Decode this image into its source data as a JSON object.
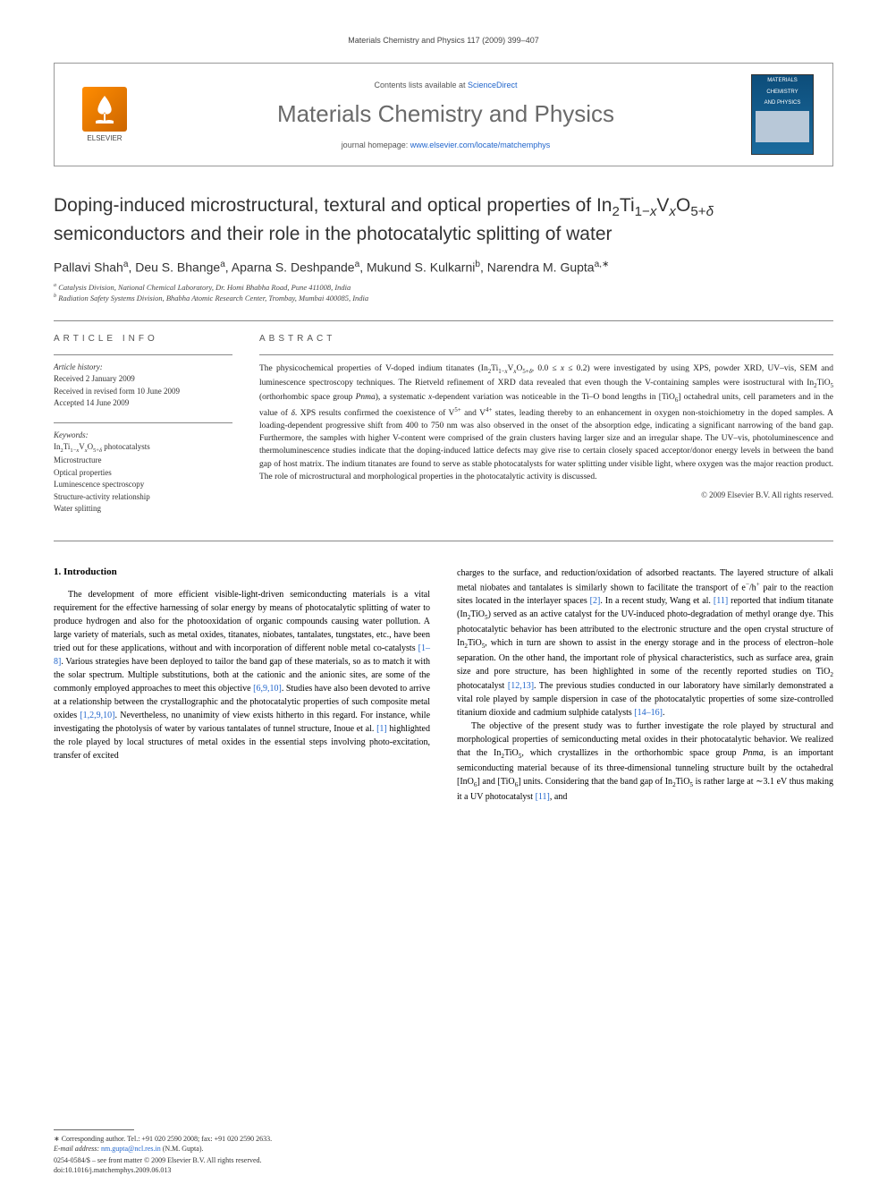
{
  "running_head": "Materials Chemistry and Physics 117 (2009) 399–407",
  "masthead": {
    "contents_prefix": "Contents lists available at ",
    "contents_link": "ScienceDirect",
    "journal": "Materials Chemistry and Physics",
    "homepage_prefix": "journal homepage: ",
    "homepage_url": "www.elsevier.com/locate/matchemphys",
    "publisher_name": "ELSEVIER",
    "cover_line1": "MATERIALS",
    "cover_line2": "CHEMISTRY",
    "cover_line3": "AND PHYSICS"
  },
  "title_html": "Doping-induced microstructural, textural and optical properties of In<sub>2</sub>Ti<sub>1−<i>x</i></sub>V<sub><i>x</i></sub>O<sub>5+<i>δ</i></sub> semiconductors and their role in the photocatalytic splitting of water",
  "authors_html": "Pallavi Shah<sup>a</sup>, Deu S. Bhange<sup>a</sup>, Aparna S. Deshpande<sup>a</sup>, Mukund S. Kulkarni<sup>b</sup>, Narendra M. Gupta<sup>a,∗</sup>",
  "affiliations": {
    "a": "Catalysis Division, National Chemical Laboratory, Dr. Homi Bhabha Road, Pune 411008, India",
    "b": "Radiation Safety Systems Division, Bhabha Atomic Research Center, Trombay, Mumbai 400085, India"
  },
  "article_info": {
    "head": "article info",
    "history_head": "Article history:",
    "history": [
      "Received 2 January 2009",
      "Received in revised form 10 June 2009",
      "Accepted 14 June 2009"
    ],
    "keywords_head": "Keywords:",
    "keywords_html": [
      "In<sub>2</sub>Ti<sub>1−<i>x</i></sub>V<sub><i>x</i></sub>O<sub>5+<i>δ</i></sub> photocatalysts",
      "Microstructure",
      "Optical properties",
      "Luminescence spectroscopy",
      "Structure-activity relationship",
      "Water splitting"
    ]
  },
  "abstract": {
    "head": "abstract",
    "text_html": "The physicochemical properties of V-doped indium titanates (In<sub>2</sub>Ti<sub>1−<i>x</i></sub>V<sub><i>x</i></sub>O<sub>5+<i>δ</i></sub>, 0.0 ≤ <i>x</i> ≤ 0.2) were investigated by using XPS, powder XRD, UV–vis, SEM and luminescence spectroscopy techniques. The Rietveld refinement of XRD data revealed that even though the V-containing samples were isostructural with In<sub>2</sub>TiO<sub>5</sub> (orthorhombic space group <i>Pnma</i>), a systematic <i>x</i>-dependent variation was noticeable in the Ti–O bond lengths in [TiO<sub>6</sub>] octahedral units, cell parameters and in the value of <i>δ</i>. XPS results confirmed the coexistence of V<sup>5+</sup> and V<sup>4+</sup> states, leading thereby to an enhancement in oxygen non-stoichiometry in the doped samples. A loading-dependent progressive shift from 400 to 750 nm was also observed in the onset of the absorption edge, indicating a significant narrowing of the band gap. Furthermore, the samples with higher V-content were comprised of the grain clusters having larger size and an irregular shape. The UV–vis, photoluminescence and thermoluminescence studies indicate that the doping-induced lattice defects may give rise to certain closely spaced acceptor/donor energy levels in between the band gap of host matrix. The indium titanates are found to serve as stable photocatalysts for water splitting under visible light, where oxygen was the major reaction product. The role of microstructural and morphological properties in the photocatalytic activity is discussed.",
    "copyright": "© 2009 Elsevier B.V. All rights reserved."
  },
  "body": {
    "section_number": "1.",
    "section_title": "Introduction",
    "col1_html": "The development of more efficient visible-light-driven semiconducting materials is a vital requirement for the effective harnessing of solar energy by means of photocatalytic splitting of water to produce hydrogen and also for the photooxidation of organic compounds causing water pollution. A large variety of materials, such as metal oxides, titanates, niobates, tantalates, tungstates, etc., have been tried out for these applications, without and with incorporation of different noble metal co-catalysts <span class='cite'>[1–8]</span>. Various strategies have been deployed to tailor the band gap of these materials, so as to match it with the solar spectrum. Multiple substitutions, both at the cationic and the anionic sites, are some of the commonly employed approaches to meet this objective <span class='cite'>[6,9,10]</span>. Studies have also been devoted to arrive at a relationship between the crystallographic and the photocatalytic properties of such composite metal oxides <span class='cite'>[1,2,9,10]</span>. Nevertheless, no unanimity of view exists hitherto in this regard. For instance, while investigating the photolysis of water by various tantalates of tunnel structure, Inoue et al. <span class='cite'>[1]</span> highlighted the role played by local structures of metal oxides in the essential steps involving photo-excitation, transfer of excited",
    "col2_p1_html": "charges to the surface, and reduction/oxidation of adsorbed reactants. The layered structure of alkali metal niobates and tantalates is similarly shown to facilitate the transport of e<sup>−</sup>/h<sup>+</sup> pair to the reaction sites located in the interlayer spaces <span class='cite'>[2]</span>. In a recent study, Wang et al. <span class='cite'>[11]</span> reported that indium titanate (In<sub>2</sub>TiO<sub>5</sub>) served as an active catalyst for the UV-induced photo-degradation of methyl orange dye. This photocatalytic behavior has been attributed to the electronic structure and the open crystal structure of In<sub>2</sub>TiO<sub>5</sub>, which in turn are shown to assist in the energy storage and in the process of electron–hole separation. On the other hand, the important role of physical characteristics, such as surface area, grain size and pore structure, has been highlighted in some of the recently reported studies on TiO<sub>2</sub> photocatalyst <span class='cite'>[12,13]</span>. The previous studies conducted in our laboratory have similarly demonstrated a vital role played by sample dispersion in case of the photocatalytic properties of some size-controlled titanium dioxide and cadmium sulphide catalysts <span class='cite'>[14–16]</span>.",
    "col2_p2_html": "The objective of the present study was to further investigate the role played by structural and morphological properties of semiconducting metal oxides in their photocatalytic behavior. We realized that the In<sub>2</sub>TiO<sub>5</sub>, which crystallizes in the orthorhombic space group <i>Pnma</i>, is an important semiconducting material because of its three-dimensional tunneling structure built by the octahedral [InO<sub>6</sub>] and [TiO<sub>6</sub>] units. Considering that the band gap of In<sub>2</sub>TiO<sub>5</sub> is rather large at ∼3.1 eV thus making it a UV photocatalyst <span class='cite'>[11]</span>, and"
  },
  "footnotes": {
    "corresponding": "∗ Corresponding author. Tel.: +91 020 2590 2008; fax: +91 020 2590 2633.",
    "email_label": "E-mail address:",
    "email": "nm.gupta@ncl.res.in",
    "email_suffix": "(N.M. Gupta)."
  },
  "footer": {
    "issn_line": "0254-0584/$ – see front matter © 2009 Elsevier B.V. All rights reserved.",
    "doi_line": "doi:10.1016/j.matchemphys.2009.06.013"
  },
  "colors": {
    "link": "#2266cc",
    "muted": "#6a6a6a",
    "text": "#333333",
    "elsevier_orange": "#ff8c00",
    "cover_blue": "#0d4d7a"
  }
}
